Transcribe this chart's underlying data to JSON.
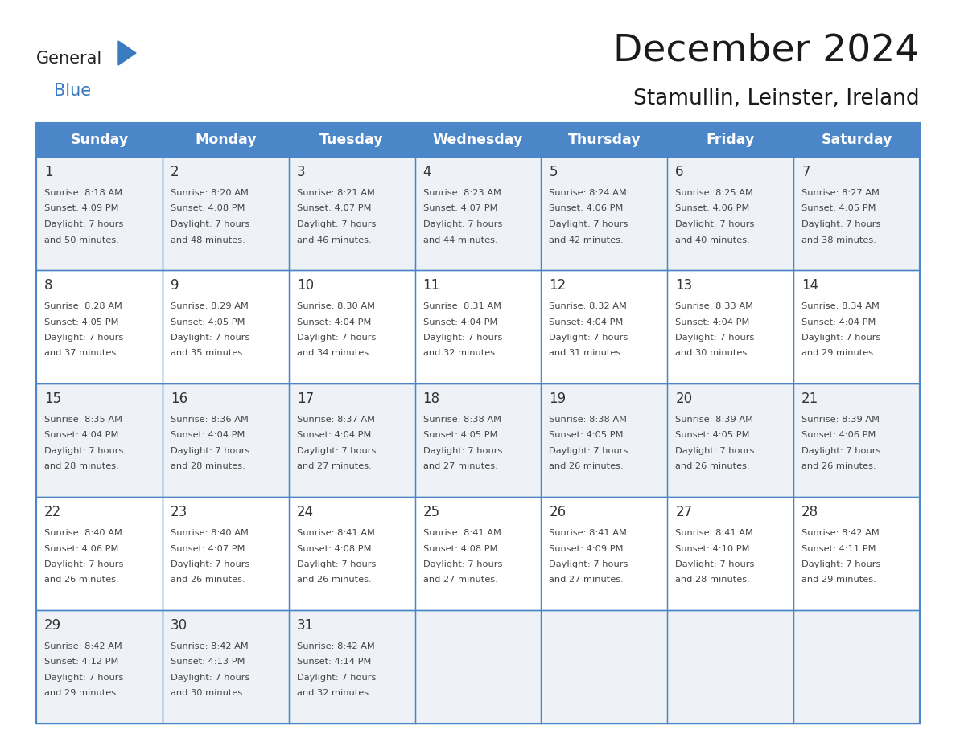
{
  "title": "December 2024",
  "subtitle": "Stamullin, Leinster, Ireland",
  "days_of_week": [
    "Sunday",
    "Monday",
    "Tuesday",
    "Wednesday",
    "Thursday",
    "Friday",
    "Saturday"
  ],
  "header_bg": "#4a86c8",
  "header_text": "#ffffff",
  "cell_bg_light": "#eef2f7",
  "cell_bg_white": "#ffffff",
  "border_color": "#4a86c8",
  "day_num_color": "#333333",
  "text_color": "#444444",
  "title_color": "#1a1a1a",
  "logo_general_color": "#222222",
  "logo_blue_color": "#3a7abf",
  "weeks": [
    [
      {
        "day": 1,
        "sunrise": "8:18 AM",
        "sunset": "4:09 PM",
        "daylight": "7 hours\nand 50 minutes."
      },
      {
        "day": 2,
        "sunrise": "8:20 AM",
        "sunset": "4:08 PM",
        "daylight": "7 hours\nand 48 minutes."
      },
      {
        "day": 3,
        "sunrise": "8:21 AM",
        "sunset": "4:07 PM",
        "daylight": "7 hours\nand 46 minutes."
      },
      {
        "day": 4,
        "sunrise": "8:23 AM",
        "sunset": "4:07 PM",
        "daylight": "7 hours\nand 44 minutes."
      },
      {
        "day": 5,
        "sunrise": "8:24 AM",
        "sunset": "4:06 PM",
        "daylight": "7 hours\nand 42 minutes."
      },
      {
        "day": 6,
        "sunrise": "8:25 AM",
        "sunset": "4:06 PM",
        "daylight": "7 hours\nand 40 minutes."
      },
      {
        "day": 7,
        "sunrise": "8:27 AM",
        "sunset": "4:05 PM",
        "daylight": "7 hours\nand 38 minutes."
      }
    ],
    [
      {
        "day": 8,
        "sunrise": "8:28 AM",
        "sunset": "4:05 PM",
        "daylight": "7 hours\nand 37 minutes."
      },
      {
        "day": 9,
        "sunrise": "8:29 AM",
        "sunset": "4:05 PM",
        "daylight": "7 hours\nand 35 minutes."
      },
      {
        "day": 10,
        "sunrise": "8:30 AM",
        "sunset": "4:04 PM",
        "daylight": "7 hours\nand 34 minutes."
      },
      {
        "day": 11,
        "sunrise": "8:31 AM",
        "sunset": "4:04 PM",
        "daylight": "7 hours\nand 32 minutes."
      },
      {
        "day": 12,
        "sunrise": "8:32 AM",
        "sunset": "4:04 PM",
        "daylight": "7 hours\nand 31 minutes."
      },
      {
        "day": 13,
        "sunrise": "8:33 AM",
        "sunset": "4:04 PM",
        "daylight": "7 hours\nand 30 minutes."
      },
      {
        "day": 14,
        "sunrise": "8:34 AM",
        "sunset": "4:04 PM",
        "daylight": "7 hours\nand 29 minutes."
      }
    ],
    [
      {
        "day": 15,
        "sunrise": "8:35 AM",
        "sunset": "4:04 PM",
        "daylight": "7 hours\nand 28 minutes."
      },
      {
        "day": 16,
        "sunrise": "8:36 AM",
        "sunset": "4:04 PM",
        "daylight": "7 hours\nand 28 minutes."
      },
      {
        "day": 17,
        "sunrise": "8:37 AM",
        "sunset": "4:04 PM",
        "daylight": "7 hours\nand 27 minutes."
      },
      {
        "day": 18,
        "sunrise": "8:38 AM",
        "sunset": "4:05 PM",
        "daylight": "7 hours\nand 27 minutes."
      },
      {
        "day": 19,
        "sunrise": "8:38 AM",
        "sunset": "4:05 PM",
        "daylight": "7 hours\nand 26 minutes."
      },
      {
        "day": 20,
        "sunrise": "8:39 AM",
        "sunset": "4:05 PM",
        "daylight": "7 hours\nand 26 minutes."
      },
      {
        "day": 21,
        "sunrise": "8:39 AM",
        "sunset": "4:06 PM",
        "daylight": "7 hours\nand 26 minutes."
      }
    ],
    [
      {
        "day": 22,
        "sunrise": "8:40 AM",
        "sunset": "4:06 PM",
        "daylight": "7 hours\nand 26 minutes."
      },
      {
        "day": 23,
        "sunrise": "8:40 AM",
        "sunset": "4:07 PM",
        "daylight": "7 hours\nand 26 minutes."
      },
      {
        "day": 24,
        "sunrise": "8:41 AM",
        "sunset": "4:08 PM",
        "daylight": "7 hours\nand 26 minutes."
      },
      {
        "day": 25,
        "sunrise": "8:41 AM",
        "sunset": "4:08 PM",
        "daylight": "7 hours\nand 27 minutes."
      },
      {
        "day": 26,
        "sunrise": "8:41 AM",
        "sunset": "4:09 PM",
        "daylight": "7 hours\nand 27 minutes."
      },
      {
        "day": 27,
        "sunrise": "8:41 AM",
        "sunset": "4:10 PM",
        "daylight": "7 hours\nand 28 minutes."
      },
      {
        "day": 28,
        "sunrise": "8:42 AM",
        "sunset": "4:11 PM",
        "daylight": "7 hours\nand 29 minutes."
      }
    ],
    [
      {
        "day": 29,
        "sunrise": "8:42 AM",
        "sunset": "4:12 PM",
        "daylight": "7 hours\nand 29 minutes."
      },
      {
        "day": 30,
        "sunrise": "8:42 AM",
        "sunset": "4:13 PM",
        "daylight": "7 hours\nand 30 minutes."
      },
      {
        "day": 31,
        "sunrise": "8:42 AM",
        "sunset": "4:14 PM",
        "daylight": "7 hours\nand 32 minutes."
      },
      null,
      null,
      null,
      null
    ]
  ]
}
